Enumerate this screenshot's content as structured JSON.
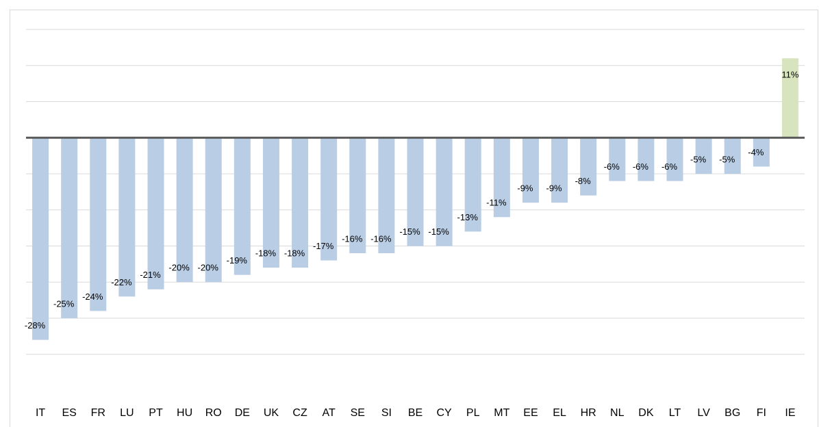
{
  "chart_data": {
    "type": "bar",
    "categories": [
      "IT",
      "ES",
      "FR",
      "LU",
      "PT",
      "HU",
      "RO",
      "DE",
      "UK",
      "CZ",
      "AT",
      "SE",
      "SI",
      "BE",
      "CY",
      "PL",
      "MT",
      "EE",
      "EL",
      "HR",
      "NL",
      "DK",
      "LT",
      "LV",
      "BG",
      "FI",
      "IE"
    ],
    "values": [
      -28,
      -25,
      -24,
      -22,
      -21,
      -20,
      -20,
      -19,
      -18,
      -18,
      -17,
      -16,
      -16,
      -15,
      -15,
      -13,
      -11,
      -9,
      -9,
      -8,
      -6,
      -6,
      -6,
      -5,
      -5,
      -4,
      11
    ],
    "value_labels": [
      "-28%",
      "-25%",
      "-24%",
      "-22%",
      "-21%",
      "-20%",
      "-20%",
      "-19%",
      "-18%",
      "-18%",
      "-17%",
      "-16%",
      "-16%",
      "-15%",
      "-15%",
      "-13%",
      "-11%",
      "-9%",
      "-9%",
      "-8%",
      "-6%",
      "-6%",
      "-6%",
      "-5%",
      "-5%",
      "-4%",
      "11%"
    ],
    "colors": [
      "#b9cde5",
      "#b9cde5",
      "#b9cde5",
      "#b9cde5",
      "#b9cde5",
      "#b9cde5",
      "#b9cde5",
      "#b9cde5",
      "#b9cde5",
      "#b9cde5",
      "#b9cde5",
      "#b9cde5",
      "#b9cde5",
      "#b9cde5",
      "#b9cde5",
      "#b9cde5",
      "#b9cde5",
      "#b9cde5",
      "#b9cde5",
      "#b9cde5",
      "#b9cde5",
      "#b9cde5",
      "#b9cde5",
      "#b9cde5",
      "#b9cde5",
      "#b9cde5",
      "#d7e4bd"
    ],
    "ylim": [
      -35,
      15
    ],
    "yticks": [
      -30,
      -25,
      -20,
      -15,
      -10,
      -5,
      0,
      5,
      10,
      15
    ],
    "grid": true
  }
}
